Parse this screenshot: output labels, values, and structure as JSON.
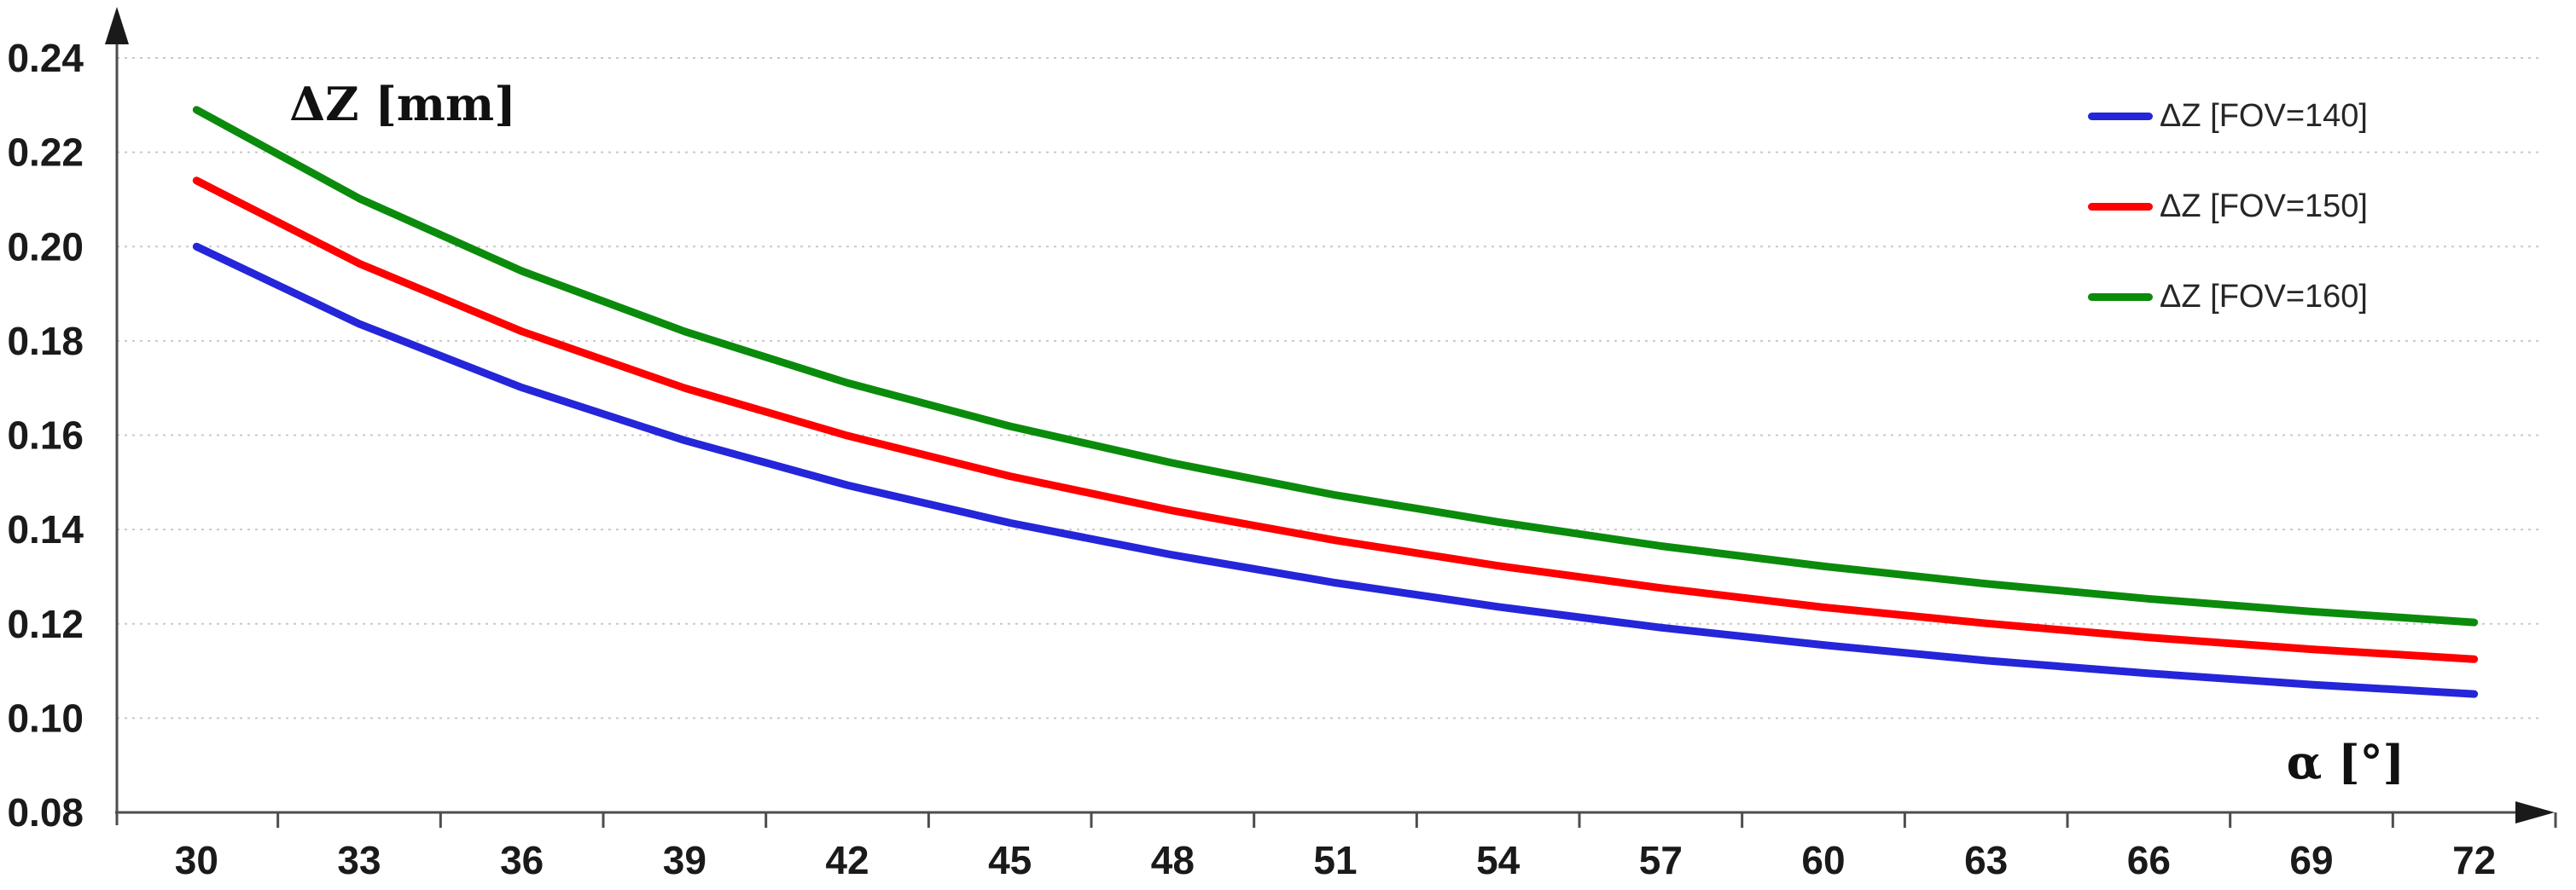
{
  "chart_data": {
    "type": "line",
    "title": "",
    "ylabel": "ΔZ [mm]",
    "xlabel": "α [°]",
    "x": [
      30,
      33,
      36,
      39,
      42,
      45,
      48,
      51,
      54,
      57,
      60,
      63,
      66,
      69,
      72
    ],
    "x_tick_labels": [
      "30",
      "33",
      "36",
      "39",
      "42",
      "45",
      "48",
      "51",
      "54",
      "57",
      "60",
      "63",
      "66",
      "69",
      "72"
    ],
    "yticks": [
      0.08,
      0.1,
      0.12,
      0.14,
      0.16,
      0.18,
      0.2,
      0.22,
      0.24
    ],
    "ytick_labels": [
      "0.08",
      "0.10",
      "0.12",
      "0.14",
      "0.16",
      "0.18",
      "0.20",
      "0.22",
      "0.24"
    ],
    "ylim": [
      0.08,
      0.24
    ],
    "grid": "horizontal-dotted",
    "legend_position": "top-right",
    "axis_arrows": true,
    "series": [
      {
        "name": "ΔZ [FOV=140]",
        "color": "#2525d9",
        "values": [
          0.2,
          0.1836,
          0.1701,
          0.1589,
          0.1494,
          0.1414,
          0.1346,
          0.1287,
          0.1236,
          0.1192,
          0.1155,
          0.1122,
          0.1095,
          0.1071,
          0.1051
        ]
      },
      {
        "name": "ΔZ [FOV=150]",
        "color": "#fe0000",
        "values": [
          0.214,
          0.1964,
          0.182,
          0.17,
          0.1599,
          0.1513,
          0.144,
          0.1377,
          0.1323,
          0.1276,
          0.1235,
          0.1201,
          0.1171,
          0.1146,
          0.1125
        ]
      },
      {
        "name": "ΔZ [FOV=160]",
        "color": "#0b8b0b",
        "values": [
          0.229,
          0.2102,
          0.1948,
          0.182,
          0.1711,
          0.1619,
          0.1541,
          0.1473,
          0.1416,
          0.1365,
          0.1322,
          0.1285,
          0.1253,
          0.1226,
          0.1203
        ]
      }
    ],
    "colors": {
      "grid": "#c9c9c9",
      "axis": "#4d4d4d",
      "tick_text": "#1a1a1a",
      "arrow": "#1a1a1a"
    }
  }
}
